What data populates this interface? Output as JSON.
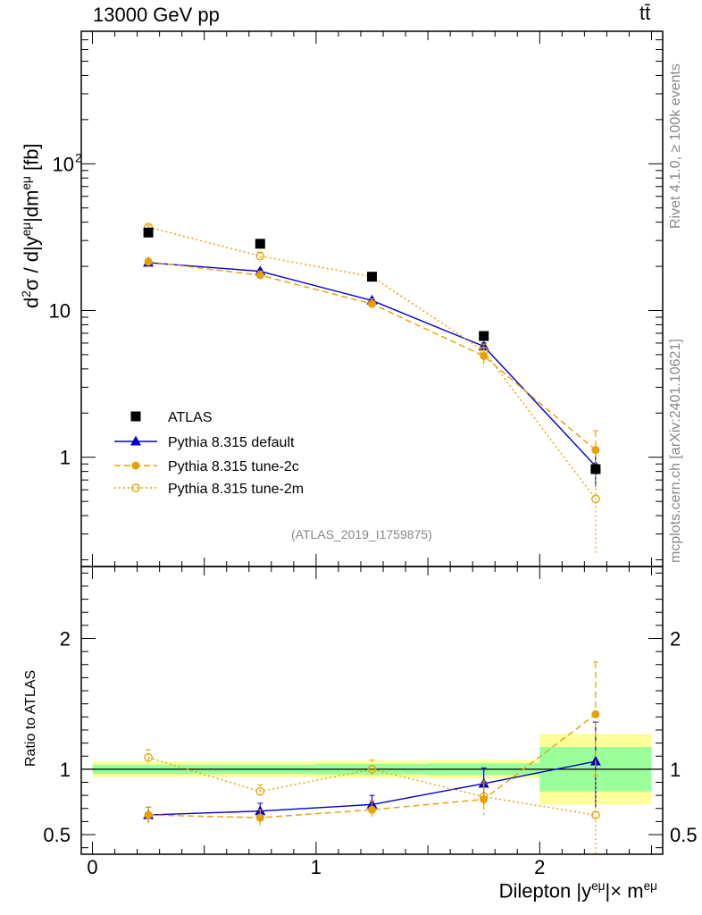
{
  "header": {
    "energy_label": "13000 GeV pp",
    "process_label": "tt̄"
  },
  "side_text": {
    "rivet": "Rivet 4.1.0, ≥ 100k events",
    "mcplots": "mcplots.cern.ch [arXiv:2401.10621]"
  },
  "analysis_tag": "(ATLAS_2019_I1759875)",
  "axes": {
    "main_ylabel": "d²σ / d|yᵉᵘ|dmᵉᵘ [fb]",
    "ratio_ylabel": "Ratio to ATLAS",
    "xlabel": "Dilepton |yᵉᵘ|× mᵉᵘ"
  },
  "colors": {
    "data": "#000000",
    "default": "#0000cc",
    "tune2c": "#e8a000",
    "tune2m": "#e8a000",
    "band_inner": "#99ff99",
    "band_outer": "#ffff99"
  },
  "chart_data": [
    {
      "type": "scatter",
      "panel": "main",
      "yscale": "log",
      "xlim": [
        -0.05,
        2.55
      ],
      "ylim": [
        0.18,
        800
      ],
      "x_ticks": [
        0,
        1,
        2
      ],
      "y_ticks": [
        1,
        10,
        100
      ],
      "y_tick_labels": [
        "1",
        "10",
        "10²"
      ],
      "legend_position": "center-left",
      "x_edges": [
        0,
        0.5,
        1,
        1.5,
        2,
        2.5
      ],
      "x": [
        0.25,
        0.75,
        1.25,
        1.75,
        2.25
      ],
      "series": [
        {
          "name": "ATLAS",
          "marker": "square",
          "values": [
            34,
            28.5,
            17,
            6.7,
            0.83
          ]
        },
        {
          "name": "Pythia 8.315 default",
          "marker": "triangle",
          "line": "solid",
          "values": [
            21.2,
            18.5,
            11.7,
            5.7,
            0.87
          ],
          "err_lo": [
            0.3,
            0.5,
            0.4,
            0.3,
            0.24
          ],
          "err_hi": [
            0.3,
            0.5,
            0.4,
            0.3,
            0.24
          ]
        },
        {
          "name": "Pythia 8.315 tune-2c",
          "marker": "circle",
          "line": "dashed",
          "values": [
            21.5,
            17.4,
            11.1,
            4.9,
            1.12
          ],
          "err_lo": [
            1.1,
            1.2,
            0.9,
            0.7,
            0.3
          ],
          "err_hi": [
            1.1,
            1.2,
            0.9,
            0.7,
            0.4
          ]
        },
        {
          "name": "Pythia 8.315 tune-2m",
          "marker": "open-circle",
          "line": "dotted",
          "values": [
            37,
            23.5,
            17,
            5.3,
            0.52
          ],
          "err_lo": [
            1.2,
            1.5,
            1.0,
            1.2,
            0.3
          ],
          "err_hi": [
            1.2,
            1.5,
            1.0,
            0.6,
            0.35
          ]
        }
      ]
    },
    {
      "type": "scatter",
      "panel": "ratio",
      "xlim": [
        -0.05,
        2.55
      ],
      "ylim": [
        0.35,
        2.55
      ],
      "x_ticks": [
        0,
        1,
        2
      ],
      "y_ticks": [
        0.5,
        1,
        2
      ],
      "y_tick_labels": [
        "0.5",
        "1",
        "2"
      ],
      "x_edges": [
        0,
        0.5,
        1,
        1.5,
        2,
        2.5
      ],
      "x": [
        0.25,
        0.75,
        1.25,
        1.75,
        2.25
      ],
      "data_band_inner": [
        0.035,
        0.035,
        0.04,
        0.045,
        0.17
      ],
      "data_band_outer": [
        0.06,
        0.06,
        0.065,
        0.07,
        0.27
      ],
      "series": [
        {
          "name": "Pythia 8.315 default",
          "values": [
            0.65,
            0.68,
            0.73,
            0.89,
            1.06
          ],
          "err_lo": [
            0.06,
            0.05,
            0.06,
            0.12,
            0.35
          ],
          "err_hi": [
            0.06,
            0.06,
            0.07,
            0.12,
            0.3
          ]
        },
        {
          "name": "Pythia 8.315 tune-2c",
          "values": [
            0.65,
            0.63,
            0.69,
            0.77,
            1.42
          ],
          "err_lo": [
            0.06,
            0.06,
            0.07,
            0.12,
            0.5
          ],
          "err_hi": [
            0.06,
            0.06,
            0.07,
            0.12,
            0.4
          ]
        },
        {
          "name": "Pythia 8.315 tune-2m",
          "values": [
            1.09,
            0.83,
            1.0,
            0.79,
            0.65
          ],
          "err_lo": [
            0.05,
            0.05,
            0.06,
            0.12,
            0.35
          ],
          "err_hi": [
            0.06,
            0.05,
            0.07,
            0.12,
            0.3
          ]
        }
      ]
    }
  ]
}
